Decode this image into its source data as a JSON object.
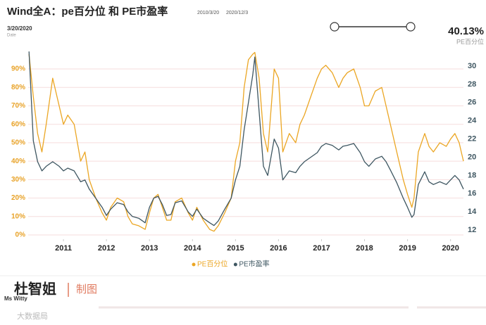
{
  "chart_data": {
    "type": "line",
    "title": "Wind全A：pe百分位 和 PE市盈率",
    "range_start": "2010/3/20",
    "range_end": "2020/12/3",
    "tooltip_date": "3/20/2020",
    "tooltip_date_label": "Date",
    "current_value": "40.13%",
    "current_series": "PE百分位",
    "x": [
      2010.2,
      2010.3,
      2010.4,
      2010.5,
      2010.6,
      2010.75,
      2010.9,
      2011.0,
      2011.1,
      2011.25,
      2011.4,
      2011.5,
      2011.6,
      2011.75,
      2011.9,
      2012.0,
      2012.1,
      2012.25,
      2012.4,
      2012.5,
      2012.6,
      2012.75,
      2012.9,
      2013.0,
      2013.1,
      2013.2,
      2013.3,
      2013.4,
      2013.5,
      2013.6,
      2013.75,
      2013.9,
      2014.0,
      2014.1,
      2014.25,
      2014.4,
      2014.5,
      2014.6,
      2014.75,
      2014.9,
      2015.0,
      2015.1,
      2015.2,
      2015.3,
      2015.4,
      2015.45,
      2015.55,
      2015.65,
      2015.75,
      2015.9,
      2016.0,
      2016.1,
      2016.25,
      2016.4,
      2016.5,
      2016.6,
      2016.75,
      2016.9,
      2017.0,
      2017.1,
      2017.25,
      2017.4,
      2017.5,
      2017.6,
      2017.75,
      2017.9,
      2018.0,
      2018.1,
      2018.25,
      2018.4,
      2018.5,
      2018.6,
      2018.75,
      2018.9,
      2019.0,
      2019.1,
      2019.15,
      2019.25,
      2019.4,
      2019.5,
      2019.6,
      2019.75,
      2019.9,
      2020.0,
      2020.1,
      2020.2,
      2020.25,
      2020.3
    ],
    "series": [
      {
        "name": "PE百分位",
        "color": "#eba623",
        "axis": "y",
        "values": [
          98,
          75,
          55,
          45,
          60,
          85,
          70,
          60,
          65,
          60,
          40,
          45,
          30,
          20,
          12,
          8,
          15,
          20,
          18,
          10,
          6,
          5,
          3,
          12,
          20,
          22,
          15,
          8,
          8,
          18,
          20,
          12,
          8,
          15,
          8,
          3,
          2,
          5,
          12,
          20,
          40,
          50,
          80,
          95,
          98,
          99,
          85,
          55,
          45,
          90,
          85,
          45,
          55,
          50,
          60,
          65,
          75,
          85,
          90,
          92,
          88,
          80,
          85,
          88,
          90,
          80,
          70,
          70,
          78,
          80,
          70,
          60,
          45,
          30,
          22,
          15,
          20,
          45,
          55,
          48,
          45,
          50,
          48,
          52,
          55,
          50,
          45,
          40
        ]
      },
      {
        "name": "PE市盈率",
        "color": "#3e5661",
        "axis": "y2",
        "values": [
          31.6,
          21.8,
          19.5,
          18.5,
          19,
          19.5,
          19,
          18.5,
          18.8,
          18.5,
          17.3,
          17.5,
          16.5,
          15.5,
          14.5,
          13.6,
          14.3,
          15,
          14.8,
          14,
          13.5,
          13.3,
          12.8,
          14.5,
          15.5,
          15.7,
          14.8,
          13.6,
          13.7,
          15,
          15.2,
          14,
          13.5,
          14.3,
          13.3,
          12.8,
          12.5,
          13,
          14.3,
          15.5,
          17.5,
          19,
          23,
          26,
          29,
          31,
          25,
          19,
          18,
          22,
          21,
          17.5,
          18.5,
          18.3,
          19,
          19.5,
          20,
          20.5,
          21.2,
          21.5,
          21.3,
          20.8,
          21.2,
          21.3,
          21.5,
          20.5,
          19.5,
          19,
          19.8,
          20.1,
          19.5,
          18.6,
          17.2,
          15.5,
          14.5,
          13.4,
          13.7,
          17,
          18.4,
          17.3,
          17,
          17.3,
          17,
          17.5,
          18,
          17.5,
          17,
          16.5
        ]
      }
    ],
    "xlim": [
      2010.18,
      2020.3
    ],
    "xticks": [
      2011,
      2012,
      2013,
      2014,
      2015,
      2016,
      2017,
      2018,
      2019,
      2020
    ],
    "ylim": [
      -2.3,
      100.7
    ],
    "yticks": [
      {
        "value": 0,
        "label": "0%"
      },
      {
        "value": 10,
        "label": "10%"
      },
      {
        "value": 20,
        "label": "20%"
      },
      {
        "value": 30,
        "label": "30%"
      },
      {
        "value": 40,
        "label": "40%"
      },
      {
        "value": 50,
        "label": "50%"
      },
      {
        "value": 60,
        "label": "60%"
      },
      {
        "value": 70,
        "label": "70%"
      },
      {
        "value": 80,
        "label": "80%"
      },
      {
        "value": 90,
        "label": "90%"
      }
    ],
    "y2lim": [
      11,
      31.85
    ],
    "y2ticks": [
      12,
      14,
      16,
      18,
      20,
      22,
      24,
      26,
      28,
      30
    ],
    "grid": true
  },
  "footer": {
    "brand_en": "Ms Witty",
    "brand_cn": "杜智姐",
    "credit": "制图",
    "source": "大数据局"
  }
}
